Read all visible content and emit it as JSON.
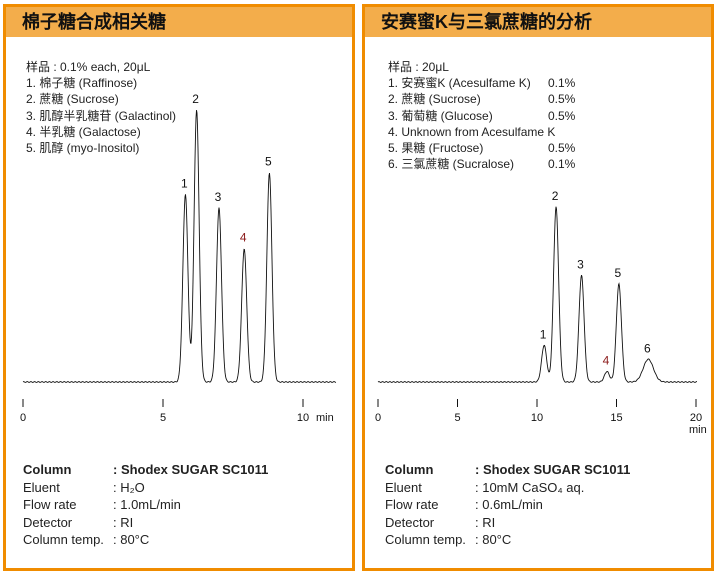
{
  "panels": [
    {
      "title": "棉子糖合成相关糖",
      "sample": "样品 : 0.1% each, 20μL",
      "items": [
        {
          "text": "1. 棉子糖 (Raffinose)"
        },
        {
          "text": "2. 蔗糖 (Sucrose)"
        },
        {
          "text": "3. 肌醇半乳糖苷 (Galactinol)"
        },
        {
          "text": "4. 半乳糖 (Galactose)"
        },
        {
          "text": "5. 肌醇 (myo-Inositol)"
        }
      ],
      "conditions": [
        {
          "k": "Column",
          "v": ": Shodex SUGAR SC1011"
        },
        {
          "k": "Eluent",
          "v": ": H₂O"
        },
        {
          "k": "Flow rate",
          "v": ": 1.0mL/min"
        },
        {
          "k": "Detector",
          "v": ": RI"
        },
        {
          "k": "Column temp.",
          "v": ": 80°C"
        }
      ]
    },
    {
      "title": "安赛蜜K与三氯蔗糖的分析",
      "sample": "样品 : 20μL",
      "items": [
        {
          "text": "1. 安赛蜜K (Acesulfame K)",
          "pct": "0.1%"
        },
        {
          "text": "2. 蔗糖 (Sucrose)",
          "pct": "0.5%"
        },
        {
          "text": "3. 葡萄糖 (Glucose)",
          "pct": "0.5%"
        },
        {
          "text": "4. Unknown from Acesulfame K"
        },
        {
          "text": "5. 果糖 (Fructose)",
          "pct": "0.5%"
        },
        {
          "text": "6. 三氯蔗糖 (Sucralose)",
          "pct": "0.1%"
        }
      ],
      "conditions": [
        {
          "k": "Column",
          "v": ": Shodex SUGAR SC1011"
        },
        {
          "k": "Eluent",
          "v": ": 10mM CaSO₄ aq."
        },
        {
          "k": "Flow rate",
          "v": ": 0.6mL/min"
        },
        {
          "k": "Detector",
          "v": ": RI"
        },
        {
          "k": "Column temp.",
          "v": ": 80°C"
        }
      ]
    }
  ],
  "chart_data": [
    {
      "type": "line",
      "xlabel": "min",
      "xlim": [
        0,
        11
      ],
      "xticks": [
        "0",
        "5",
        "10"
      ],
      "grid": false,
      "peaks": [
        {
          "label": "1",
          "x": 5.8,
          "y": 69
        },
        {
          "label": "2",
          "x": 6.2,
          "y": 100
        },
        {
          "label": "3",
          "x": 7.0,
          "y": 64
        },
        {
          "label": "4",
          "x": 7.9,
          "y": 49,
          "color": "#8b1a1a"
        },
        {
          "label": "5",
          "x": 8.8,
          "y": 77
        }
      ]
    },
    {
      "type": "line",
      "xlabel": "min",
      "xlim": [
        0,
        20
      ],
      "xticks": [
        "0",
        "5",
        "10",
        "15",
        "20"
      ],
      "grid": false,
      "peaks": [
        {
          "label": "1",
          "x": 10.45,
          "y": 21
        },
        {
          "label": "2",
          "x": 11.2,
          "y": 100
        },
        {
          "label": "3",
          "x": 12.8,
          "y": 61
        },
        {
          "label": "4",
          "x": 14.4,
          "y": 6,
          "color": "#8b1a1a"
        },
        {
          "label": "5",
          "x": 15.15,
          "y": 56
        },
        {
          "label": "6",
          "x": 17.0,
          "y": 13
        }
      ]
    }
  ]
}
